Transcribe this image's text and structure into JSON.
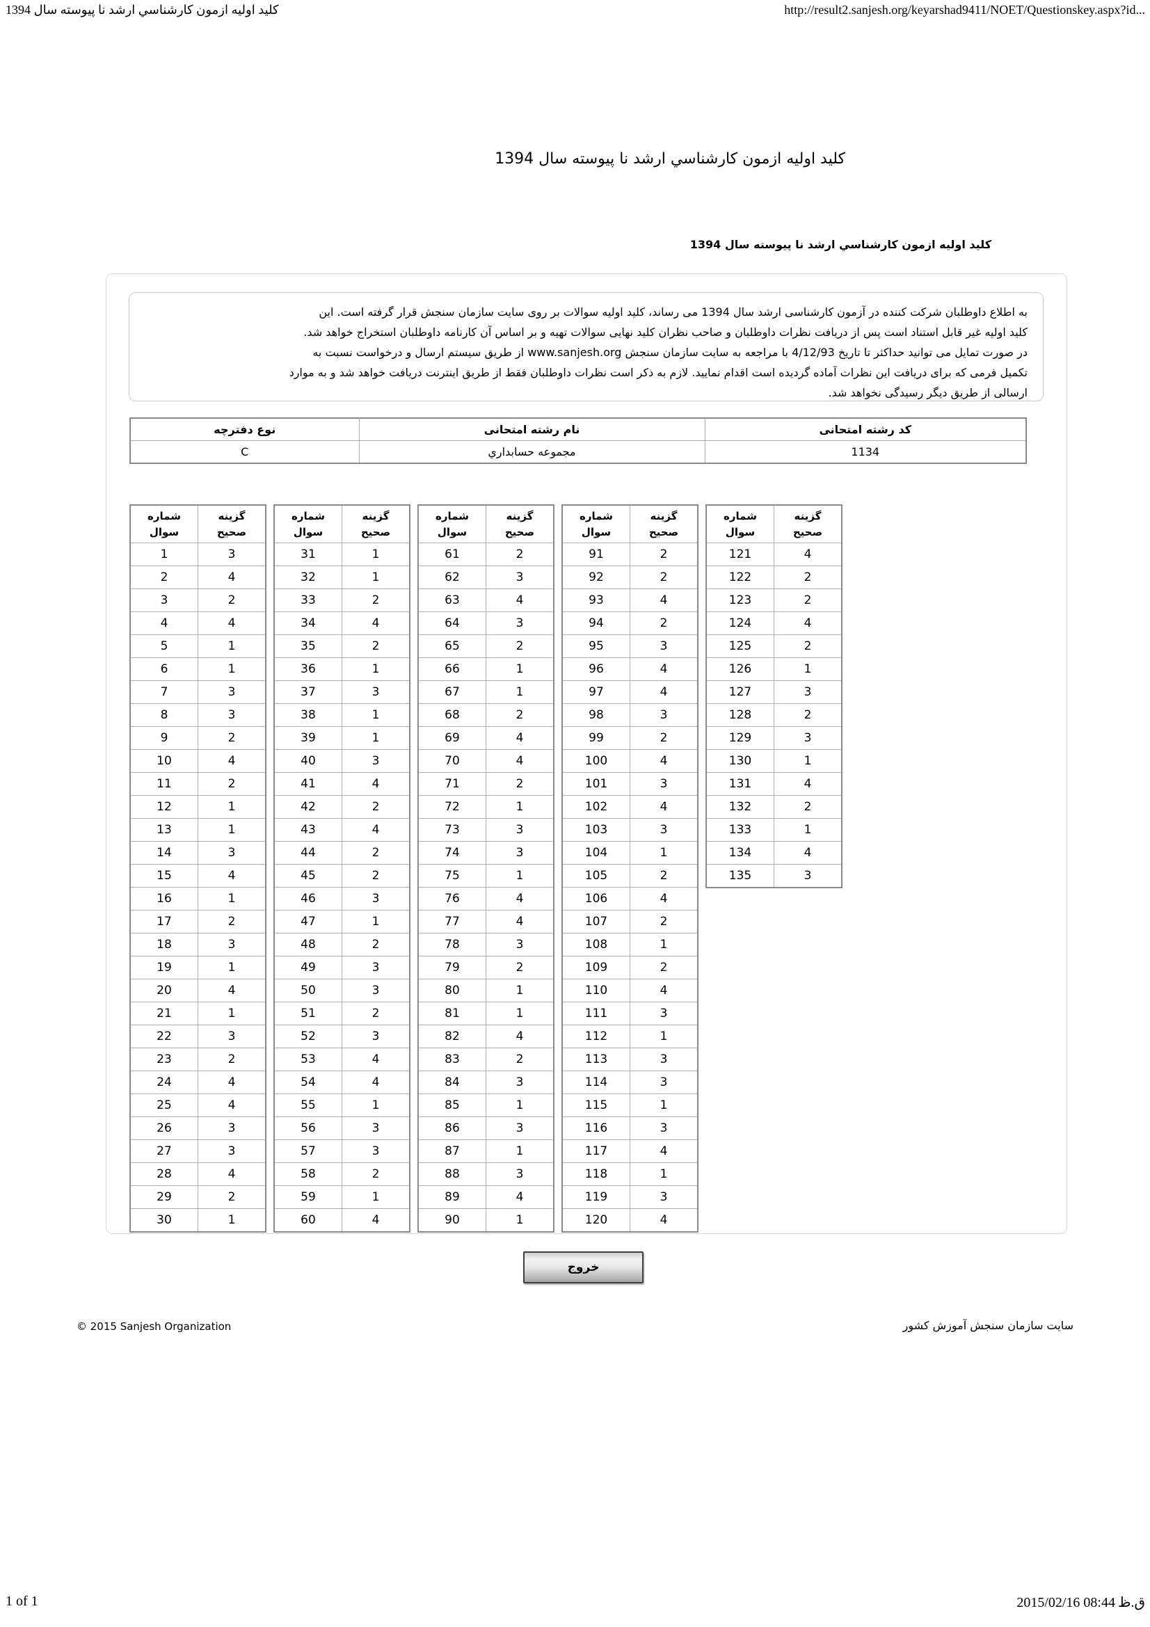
{
  "page": {
    "print_header": {
      "left_title": "کلید اولیه ازمون کارشناسي ارشد نا پیوسته سال 1394",
      "right_url": "http://result2.sanjesh.org/keyarshad9411/NOET/Questionskey.aspx?id..."
    },
    "print_footer": {
      "page_info": "1 of 1",
      "datetime": "2015/02/16 08:44",
      "am_marker": "ق.ظ"
    }
  },
  "main": {
    "title": "کلید اولیه ازمون کارشناسي ارشد نا پیوسته سال 1394",
    "subtitle": "کلید اولیه ازمون کارشناسي ارشد نا پیوسته سال 1394",
    "notice_lines": [
      "به اطلاع داوطلبان شرکت کننده در آزمون کارشناسی ارشد سال 1394 می رساند، کلید اولیه سوالات بر روی سایت سازمان سنجش قرار گرفته است. این",
      "کلید اولیه غیر قابل استناد است پس از دریافت نظرات داوطلبان و صاحب نظران کلید نهایی سوالات تهیه و بر اساس آن کارنامه داوطلبان استخراج خواهد شد.",
      "در صورت تمایل می توانید حداکثر تا تاریخ 4/12/93 با مراجعه به سایت سازمان سنجش www.sanjesh.org از طریق  سیستم ارسال و درخواست نسبت به",
      "تکمیل فرمی که برای دریافت این نظرات آماده گردیده است اقدام نمایید. لازم به ذکر است نظرات داوطلبان فقط از طریق اینترنت دریافت خواهد شد و به موارد",
      "ارسالی از طریق دیگر رسیدگی نخواهد شد."
    ],
    "exam_info": {
      "headers": [
        "کد رشته امتحانی",
        "نام رشته امتحانی",
        "نوع دفترچه"
      ],
      "values": [
        "1134",
        "مجموعه حسابداري",
        "C"
      ]
    },
    "answer_key": {
      "question_label_lines": [
        "شماره",
        "سوال"
      ],
      "answer_label_lines": [
        "گزینه",
        "صحیح"
      ],
      "groups": [
        {
          "start": 1,
          "answers": [
            3,
            4,
            2,
            4,
            1,
            1,
            3,
            3,
            2,
            4,
            2,
            1,
            1,
            3,
            4,
            1,
            2,
            3,
            1,
            4,
            1,
            3,
            2,
            4,
            4,
            3,
            3,
            4,
            2,
            1
          ]
        },
        {
          "start": 31,
          "answers": [
            1,
            1,
            2,
            4,
            2,
            1,
            3,
            1,
            1,
            3,
            4,
            2,
            4,
            2,
            2,
            3,
            1,
            2,
            3,
            3,
            2,
            3,
            4,
            4,
            1,
            3,
            3,
            2,
            1,
            4
          ]
        },
        {
          "start": 61,
          "answers": [
            2,
            3,
            4,
            3,
            2,
            1,
            1,
            2,
            4,
            4,
            2,
            1,
            3,
            3,
            1,
            4,
            4,
            3,
            2,
            1,
            1,
            4,
            2,
            3,
            1,
            3,
            1,
            3,
            4,
            1
          ]
        },
        {
          "start": 91,
          "answers": [
            2,
            2,
            4,
            2,
            3,
            4,
            4,
            3,
            2,
            4,
            3,
            4,
            3,
            1,
            2,
            4,
            2,
            1,
            2,
            4,
            3,
            1,
            3,
            3,
            1,
            3,
            4,
            1,
            3,
            4
          ]
        },
        {
          "start": 121,
          "answers": [
            4,
            2,
            2,
            4,
            2,
            1,
            3,
            2,
            3,
            1,
            4,
            2,
            1,
            4,
            3
          ]
        }
      ]
    },
    "exit_button_label": "خروج"
  },
  "footer": {
    "copyright": "© 2015 Sanjesh Organization",
    "site_name": "سایت سازمان سنجش آموزش کشور"
  }
}
